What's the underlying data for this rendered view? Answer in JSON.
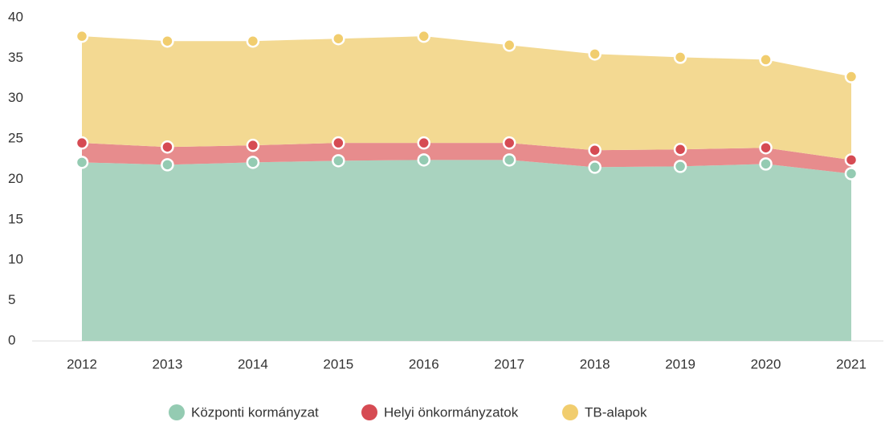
{
  "chart_data": {
    "type": "stacked_area",
    "categories": [
      "2012",
      "2013",
      "2014",
      "2015",
      "2016",
      "2017",
      "2018",
      "2019",
      "2020",
      "2021"
    ],
    "series": [
      {
        "name": "Központi kormányzat",
        "color": "#a9d3bf",
        "marker_color": "#94cbb2",
        "values": [
          22.1,
          21.8,
          22.1,
          22.3,
          22.4,
          22.4,
          21.5,
          21.6,
          21.9,
          20.7
        ]
      },
      {
        "name": "Helyi önkormányzatok",
        "color": "#e78c8d",
        "marker_color": "#d64b53",
        "values": [
          2.4,
          2.2,
          2.1,
          2.2,
          2.1,
          2.1,
          2.1,
          2.1,
          2.0,
          1.7
        ]
      },
      {
        "name": "TB-alapok",
        "color": "#f3d992",
        "marker_color": "#f1cd6e",
        "values": [
          13.2,
          13.1,
          12.9,
          12.9,
          13.2,
          12.1,
          11.9,
          11.4,
          10.9,
          10.3
        ]
      }
    ],
    "ylim": [
      0,
      40
    ],
    "yticks": [
      0,
      5,
      10,
      15,
      20,
      25,
      30,
      35,
      40
    ],
    "grid": false,
    "legend": "bottom"
  }
}
